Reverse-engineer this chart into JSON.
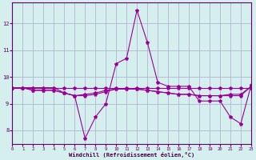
{
  "x": [
    0,
    1,
    2,
    3,
    4,
    5,
    6,
    7,
    8,
    9,
    10,
    11,
    12,
    13,
    14,
    15,
    16,
    17,
    18,
    19,
    20,
    21,
    22,
    23
  ],
  "line_main": [
    9.6,
    9.6,
    9.6,
    9.6,
    9.6,
    9.4,
    9.3,
    7.7,
    8.5,
    9.0,
    10.5,
    10.7,
    12.5,
    11.3,
    9.8,
    9.65,
    9.65,
    9.65,
    9.1,
    9.1,
    9.1,
    8.5,
    8.25,
    9.7
  ],
  "line_flat": [
    9.6,
    9.6,
    9.6,
    9.6,
    9.6,
    9.6,
    9.6,
    9.6,
    9.6,
    9.6,
    9.6,
    9.6,
    9.6,
    9.6,
    9.6,
    9.6,
    9.6,
    9.6,
    9.6,
    9.6,
    9.6,
    9.6,
    9.6,
    9.6
  ],
  "line_mid1": [
    9.6,
    9.6,
    9.5,
    9.5,
    9.5,
    9.4,
    9.3,
    9.3,
    9.35,
    9.45,
    9.55,
    9.55,
    9.55,
    9.5,
    9.45,
    9.4,
    9.35,
    9.35,
    9.3,
    9.3,
    9.3,
    9.3,
    9.3,
    9.65
  ],
  "line_mid2": [
    9.6,
    9.6,
    9.5,
    9.5,
    9.5,
    9.4,
    9.3,
    9.35,
    9.4,
    9.5,
    9.55,
    9.55,
    9.55,
    9.5,
    9.45,
    9.4,
    9.35,
    9.35,
    9.3,
    9.3,
    9.3,
    9.35,
    9.35,
    9.65
  ],
  "line_color": "#990099",
  "bg_color": "#d5eeee",
  "grid_color": "#aaaacc",
  "xlabel": "Windchill (Refroidissement éolien,°C)",
  "xlim": [
    0,
    23
  ],
  "ylim": [
    7.5,
    12.8
  ],
  "yticks": [
    8,
    9,
    10,
    11,
    12
  ],
  "xticks": [
    0,
    1,
    2,
    3,
    4,
    5,
    6,
    7,
    8,
    9,
    10,
    11,
    12,
    13,
    14,
    15,
    16,
    17,
    18,
    19,
    20,
    21,
    22,
    23
  ]
}
